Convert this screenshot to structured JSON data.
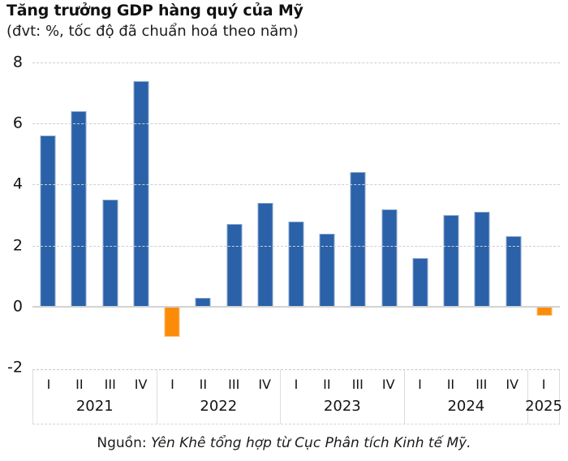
{
  "header": {
    "title": "Tăng trưởng GDP hàng quý của Mỹ",
    "subtitle": "(đvt: %, tốc độ đã chuẩn hoá theo năm)"
  },
  "footer": {
    "source_prefix": "Nguồn: ",
    "source_text": "Yên Khê tổng hợp từ Cục Phân tích Kinh tế Mỹ."
  },
  "chart_data": {
    "type": "bar",
    "title": "Tăng trưởng GDP hàng quý của Mỹ",
    "subtitle": "(đvt: %, tốc độ đã chuẩn hoá theo năm)",
    "ylabel": "",
    "xlabel": "",
    "ylim": [
      -2,
      8
    ],
    "yticks": [
      8,
      6,
      4,
      2,
      0,
      -2
    ],
    "grid": "horizontal-dashed",
    "legend": "none",
    "colors": {
      "positive_bar": "#2a61a8",
      "negative_bar": "#fb8c09",
      "gridline": "#cfcfcf",
      "zero_line": "#d2d2d2",
      "text": "#141414"
    },
    "groups": [
      {
        "year": "2021",
        "quarters": [
          "I",
          "II",
          "III",
          "IV"
        ],
        "values": [
          5.6,
          6.4,
          3.5,
          7.4
        ]
      },
      {
        "year": "2022",
        "quarters": [
          "I",
          "II",
          "III",
          "IV"
        ],
        "values": [
          -1.0,
          0.3,
          2.7,
          3.4
        ]
      },
      {
        "year": "2023",
        "quarters": [
          "I",
          "II",
          "III",
          "IV"
        ],
        "values": [
          2.8,
          2.4,
          4.4,
          3.2
        ]
      },
      {
        "year": "2024",
        "quarters": [
          "I",
          "II",
          "III",
          "IV"
        ],
        "values": [
          1.6,
          3.0,
          3.1,
          2.3
        ]
      },
      {
        "year": "2025",
        "quarters": [
          "I"
        ],
        "values": [
          -0.3
        ]
      }
    ]
  }
}
